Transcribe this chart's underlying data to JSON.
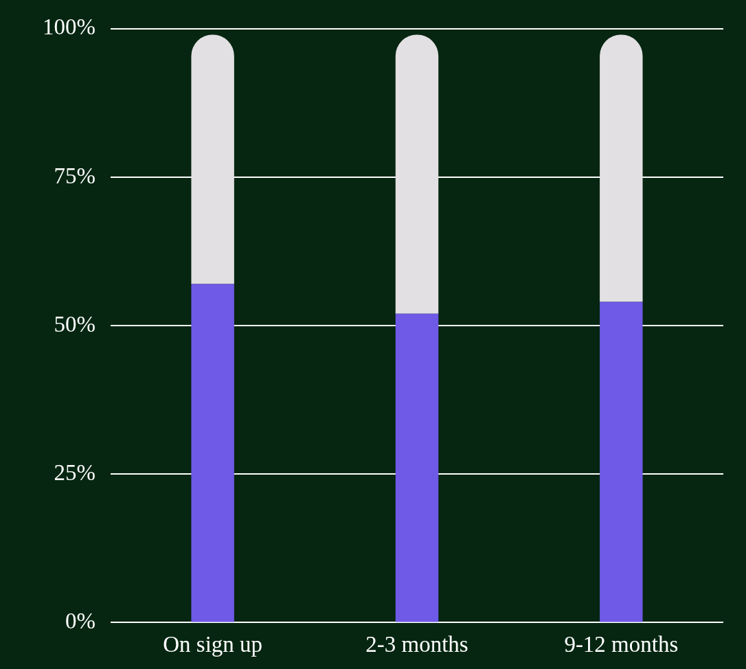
{
  "chart_data": {
    "type": "bar",
    "stacked": true,
    "categories": [
      "On sign up",
      "2-3 months",
      "9-12 months"
    ],
    "series": [
      {
        "color": "#6e5ae6",
        "values": [
          57,
          52,
          54
        ]
      },
      {
        "color": "#e2e0e2",
        "values": [
          42,
          47,
          45
        ]
      }
    ],
    "ylim": [
      0,
      100
    ],
    "yticks": [
      {
        "value": 0,
        "label": "0%"
      },
      {
        "value": 25,
        "label": "25%"
      },
      {
        "value": 50,
        "label": "50%"
      },
      {
        "value": 75,
        "label": "75%"
      },
      {
        "value": 100,
        "label": "100%"
      }
    ],
    "grid": "y"
  }
}
